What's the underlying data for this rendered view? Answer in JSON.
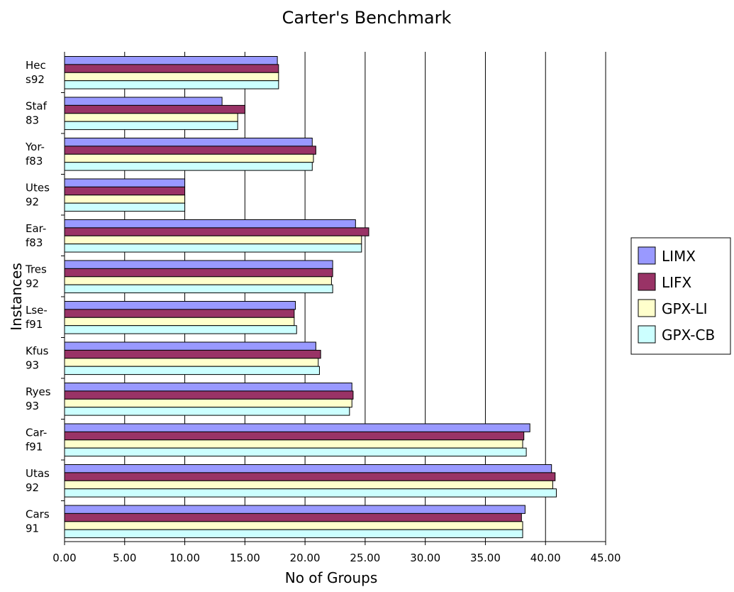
{
  "chart_data": {
    "type": "bar",
    "orientation": "horizontal",
    "title": "Carter's Benchmark",
    "xlabel": "No of Groups",
    "ylabel": "Instances",
    "xlim": [
      0,
      45
    ],
    "x_ticks": [
      "0.00",
      "5.00",
      "10.00",
      "15.00",
      "20.00",
      "25.00",
      "30.00",
      "35.00",
      "40.00",
      "45.00"
    ],
    "grid": "vertical",
    "legend_position": "right",
    "categories": [
      [
        "Hec",
        "s92"
      ],
      [
        "Staf",
        "83"
      ],
      [
        "Yor-",
        "f83"
      ],
      [
        "Utes",
        "92"
      ],
      [
        "Ear-",
        "f83"
      ],
      [
        "Tres",
        "92"
      ],
      [
        "Lse-",
        "f91"
      ],
      [
        "Kfus",
        "93"
      ],
      [
        "Ryes",
        "93"
      ],
      [
        "Car-",
        "f91"
      ],
      [
        "Utas",
        "92"
      ],
      [
        "Cars",
        "91"
      ]
    ],
    "series": [
      {
        "name": "LIMX",
        "color": "#9999ff",
        "values": [
          17.7,
          13.1,
          20.6,
          10.0,
          24.2,
          22.3,
          19.2,
          20.9,
          23.9,
          38.7,
          40.5,
          38.3
        ]
      },
      {
        "name": "LIFX",
        "color": "#993366",
        "values": [
          17.8,
          15.0,
          20.9,
          10.0,
          25.3,
          22.3,
          19.1,
          21.3,
          24.0,
          38.2,
          40.8,
          38.0
        ]
      },
      {
        "name": "GPX-LI",
        "color": "#ffffcc",
        "values": [
          17.8,
          14.4,
          20.7,
          10.0,
          24.7,
          22.2,
          19.1,
          21.1,
          23.9,
          38.1,
          40.6,
          38.1
        ]
      },
      {
        "name": "GPX-CB",
        "color": "#ccffff",
        "values": [
          17.8,
          14.4,
          20.6,
          10.0,
          24.7,
          22.3,
          19.3,
          21.2,
          23.7,
          38.4,
          40.9,
          38.1
        ]
      }
    ]
  }
}
